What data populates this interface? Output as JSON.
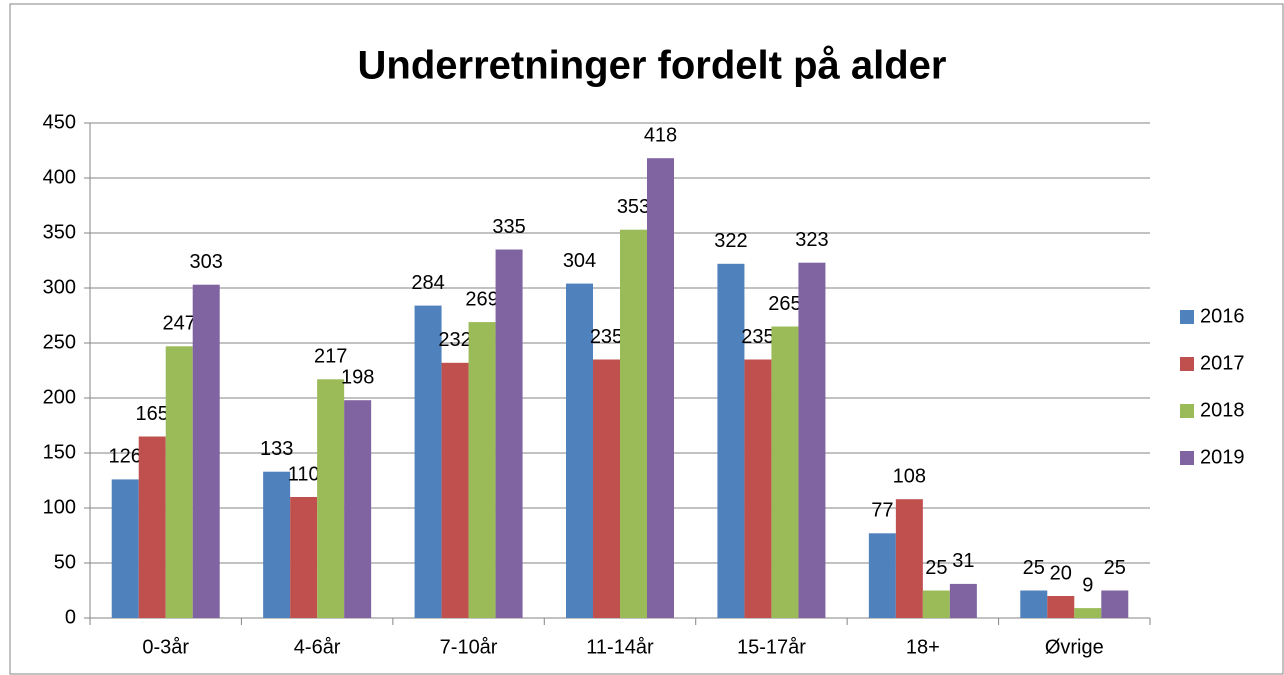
{
  "chart_data": {
    "type": "bar",
    "title": "Underretninger fordelt på alder",
    "categories": [
      "0-3år",
      "4-6år",
      "7-10år",
      "11-14år",
      "15-17år",
      "18+",
      "Øvrige"
    ],
    "series": [
      {
        "name": "2016",
        "color": "#4f81bd",
        "values": [
          126,
          133,
          284,
          304,
          322,
          77,
          25
        ]
      },
      {
        "name": "2017",
        "color": "#c0504d",
        "values": [
          165,
          110,
          232,
          235,
          235,
          108,
          20
        ]
      },
      {
        "name": "2018",
        "color": "#9bbb59",
        "values": [
          247,
          217,
          269,
          353,
          265,
          25,
          9
        ]
      },
      {
        "name": "2019",
        "color": "#8064a2",
        "values": [
          303,
          198,
          335,
          418,
          323,
          31,
          25
        ]
      }
    ],
    "ylim": [
      0,
      450
    ],
    "yticks": [
      0,
      50,
      100,
      150,
      200,
      250,
      300,
      350,
      400,
      450
    ],
    "grid": true,
    "legend": "right"
  }
}
